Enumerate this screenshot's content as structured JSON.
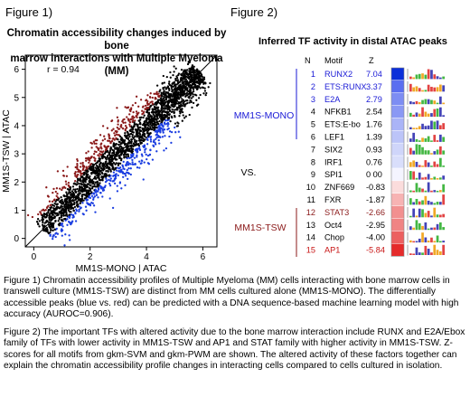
{
  "figure1": {
    "label": "Figure 1)",
    "title_line1": "Chromatin accessibility changes induced by bone",
    "title_line2": "marrow interactions with Multiple Myeloma (MM)",
    "chart_data": {
      "type": "scatter",
      "title": "Chromatin accessibility changes induced by bone marrow interactions with Multiple Myeloma (MM)",
      "xlabel": "MM1S-MONO | ATAC",
      "ylabel": "MM1S-TSW | ATAC",
      "xlim": [
        -0.3,
        6.5
      ],
      "ylim": [
        -0.3,
        6.5
      ],
      "x_ticks": [
        0,
        2,
        4,
        6
      ],
      "y_ticks": [
        0,
        1,
        2,
        3,
        4,
        5,
        6
      ],
      "x_tick_labels": [
        "0",
        "2",
        "4",
        "6"
      ],
      "y_tick_labels": [
        "0",
        "1",
        "2",
        "3",
        "4",
        "5",
        "6"
      ],
      "annotation": "r = 0.94",
      "diagonal_line": [
        [
          -0.3,
          -0.3
        ],
        [
          6.5,
          6.5
        ]
      ],
      "series": [
        {
          "color": "#000000",
          "role": "not differential"
        },
        {
          "color": "#8b1a1a",
          "role": "higher in MM1S-TSW"
        },
        {
          "color": "#1a3de0",
          "role": "higher in MM1S-MONO"
        }
      ]
    }
  },
  "figure2": {
    "label": "Figure 2)",
    "title": "Inferred TF activity in distal ATAC peaks",
    "headers": {
      "n": "N",
      "motif": "Motif",
      "z": "Z"
    },
    "group_mono": "MM1S-MONO",
    "vs": "VS.",
    "group_tsw": "MM1S-TSW",
    "chart_data": {
      "type": "table",
      "columns": [
        "N",
        "Motif",
        "Z"
      ],
      "rows": [
        {
          "n": "1",
          "motif": "RUNX2",
          "z": "7.04",
          "value": 7.04,
          "color": "#1a1ad6",
          "box": "#0b2fd9"
        },
        {
          "n": "2",
          "motif": "ETS:RUNX",
          "z": "3.37",
          "value": 3.37,
          "color": "#1a1ad6",
          "box": "#5a6ef0"
        },
        {
          "n": "3",
          "motif": "E2A",
          "z": "2.79",
          "value": 2.79,
          "color": "#1a1ad6",
          "box": "#7d8df3"
        },
        {
          "n": "4",
          "motif": "NFKB1",
          "z": "2.54",
          "value": 2.54,
          "color": "#000000",
          "box": "#8a98f4"
        },
        {
          "n": "5",
          "motif": "ETS:E-bo",
          "z": "1.76",
          "value": 1.76,
          "color": "#000000",
          "box": "#aab4f7"
        },
        {
          "n": "6",
          "motif": "LEF1",
          "z": "1.39",
          "value": 1.39,
          "color": "#000000",
          "box": "#bcc4f8"
        },
        {
          "n": "7",
          "motif": "SIX2",
          "z": "0.93",
          "value": 0.93,
          "color": "#000000",
          "box": "#cfd5fa"
        },
        {
          "n": "8",
          "motif": "IRF1",
          "z": "0.76",
          "value": 0.76,
          "color": "#000000",
          "box": "#d9defb"
        },
        {
          "n": "9",
          "motif": "SPI1",
          "z": "0 00",
          "value": 0.0,
          "color": "#000000",
          "box": "#f4f4ff"
        },
        {
          "n": "10",
          "motif": "ZNF669",
          "z": "-0.83",
          "value": -0.83,
          "color": "#000000",
          "box": "#fbdcdc"
        },
        {
          "n": "11",
          "motif": "FXR",
          "z": "-1.87",
          "value": -1.87,
          "color": "#000000",
          "box": "#f7b3b3"
        },
        {
          "n": "12",
          "motif": "STAT3",
          "z": "-2.66",
          "value": -2.66,
          "color": "#8b1a1a",
          "box": "#f29090"
        },
        {
          "n": "13",
          "motif": "Oct4",
          "z": "-2.95",
          "value": -2.95,
          "color": "#000000",
          "box": "#f08484"
        },
        {
          "n": "14",
          "motif": "Chop",
          "z": "-4.00",
          "value": -4.0,
          "color": "#000000",
          "box": "#ec6060"
        },
        {
          "n": "15",
          "motif": "AP1",
          "z": "-5.84",
          "value": -5.84,
          "color": "#c81414",
          "box": "#e52b2b"
        }
      ]
    }
  },
  "caption1": "Figure 1) Chromatin accessibility profiles of Multiple Myeloma (MM) cells interacting with bone marrow cells in transwell culture (MM1S-TSW) are distinct from MM cells cultured alone (MM1S-MONO). The differentially accessible peaks (blue vs. red) can be predicted with a DNA sequence-based machine learning model with high accuracy (AUROC=0.906).",
  "caption2": "Figure 2) The important TFs with altered activity due to the bone marrow interaction include RUNX and E2A/Ebox family of TFs with lower activity in MM1S-TSW and AP1 and STAT family with higher activity in MM1S-TSW. Z-scores for all motifs from gkm-SVM and gkm-PWM are shown. The altered activity of these factors together can explain the chromatin accessibility profile changes in interacting cells compared to cells cultured in isolation."
}
